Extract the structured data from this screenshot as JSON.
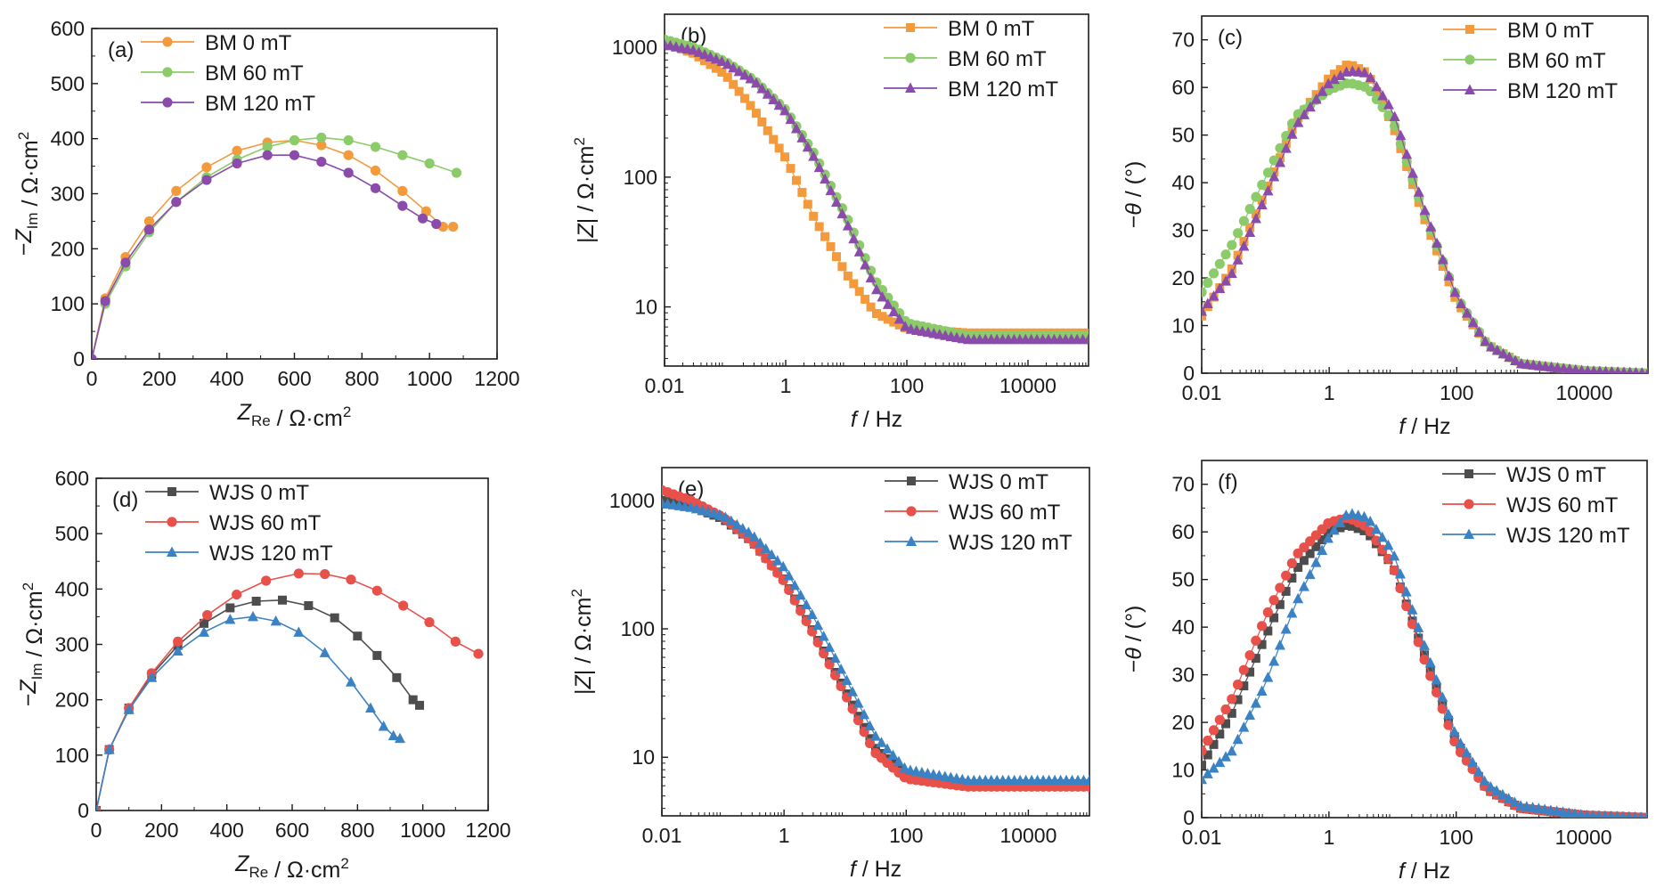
{
  "chart_data": [
    {
      "id": "a",
      "type": "line",
      "panel_label": "(a)",
      "xlabel": "Z_Re / Ω·cm²",
      "ylabel": "−Z_Im / Ω·cm²",
      "xlim": [
        0,
        1200
      ],
      "ylim": [
        0,
        600
      ],
      "xticks": [
        0,
        200,
        400,
        600,
        800,
        1000,
        1200
      ],
      "yticks": [
        0,
        100,
        200,
        300,
        400,
        500,
        600
      ],
      "xscale": "linear",
      "yscale": "linear",
      "grid": false,
      "legend_position": "top-left",
      "series": [
        {
          "name": "BM 0 mT",
          "color": "#F39A3C",
          "marker": "circle",
          "x": [
            0,
            40,
            100,
            170,
            250,
            340,
            430,
            520,
            600,
            680,
            760,
            840,
            920,
            990,
            1040,
            1070
          ],
          "y": [
            0,
            110,
            185,
            250,
            305,
            348,
            378,
            393,
            397,
            388,
            370,
            342,
            305,
            268,
            240,
            240
          ]
        },
        {
          "name": "BM 60 mT",
          "color": "#8CCB6A",
          "marker": "circle",
          "x": [
            0,
            40,
            100,
            170,
            250,
            340,
            430,
            520,
            600,
            680,
            760,
            840,
            920,
            1000,
            1080
          ],
          "y": [
            0,
            100,
            168,
            230,
            285,
            330,
            362,
            385,
            397,
            402,
            397,
            385,
            370,
            355,
            338
          ]
        },
        {
          "name": "BM 120 mT",
          "color": "#8A4BAA",
          "marker": "circle",
          "x": [
            0,
            40,
            100,
            170,
            250,
            340,
            430,
            520,
            600,
            680,
            760,
            840,
            920,
            980,
            1020
          ],
          "y": [
            0,
            105,
            175,
            235,
            285,
            325,
            355,
            370,
            370,
            358,
            338,
            310,
            278,
            255,
            245
          ]
        }
      ]
    },
    {
      "id": "b",
      "type": "line",
      "panel_label": "(b)",
      "xlabel": "f / Hz",
      "ylabel": "|Z| / Ω·cm²",
      "xlim": [
        0.01,
        100000
      ],
      "ylim": [
        3.5,
        1800
      ],
      "xticks": [
        0.01,
        1,
        100,
        10000
      ],
      "yticks": [
        10,
        100,
        1000
      ],
      "xscale": "log",
      "yscale": "log",
      "grid": false,
      "legend_position": "top-right",
      "series": [
        {
          "name": "BM 0 mT",
          "color": "#F39A3C",
          "marker": "square",
          "x": [
            0.01,
            0.03,
            0.1,
            0.3,
            1,
            3,
            10,
            30,
            100,
            1000,
            100000
          ],
          "y": [
            1080,
            900,
            620,
            330,
            140,
            48,
            18,
            9,
            6.8,
            6.3,
            6.3
          ]
        },
        {
          "name": "BM 60 mT",
          "color": "#8CCB6A",
          "marker": "circle",
          "x": [
            0.01,
            0.03,
            0.1,
            0.3,
            1,
            3,
            10,
            30,
            100,
            1000,
            100000
          ],
          "y": [
            1150,
            1000,
            780,
            560,
            330,
            150,
            50,
            16,
            7.5,
            6.0,
            6.0
          ]
        },
        {
          "name": "BM 120 mT",
          "color": "#8A4BAA",
          "marker": "triangle",
          "x": [
            0.01,
            0.03,
            0.1,
            0.3,
            1,
            3,
            10,
            30,
            100,
            1000,
            100000
          ],
          "y": [
            1050,
            950,
            760,
            550,
            320,
            140,
            45,
            14,
            6.8,
            5.6,
            5.6
          ]
        }
      ]
    },
    {
      "id": "c",
      "type": "line",
      "panel_label": "(c)",
      "xlabel": "f / Hz",
      "ylabel": "−θ / (°)",
      "xlim": [
        0.01,
        100000
      ],
      "ylim": [
        0,
        75
      ],
      "xticks": [
        0.01,
        1,
        100,
        10000
      ],
      "yticks": [
        0,
        10,
        20,
        30,
        40,
        50,
        60,
        70
      ],
      "xscale": "log",
      "yscale": "linear",
      "grid": false,
      "legend_position": "top-right",
      "series": [
        {
          "name": "BM 0 mT",
          "color": "#F39A3C",
          "marker": "square",
          "x": [
            0.01,
            0.03,
            0.1,
            0.3,
            1,
            2,
            4,
            10,
            30,
            100,
            300,
            1000,
            10000,
            100000
          ],
          "y": [
            12,
            22,
            38,
            53,
            62,
            65,
            63,
            52,
            33,
            15,
            6,
            2,
            0.5,
            0
          ]
        },
        {
          "name": "BM 60 mT",
          "color": "#8CCB6A",
          "marker": "circle",
          "x": [
            0.01,
            0.03,
            0.1,
            0.3,
            1,
            2,
            4,
            10,
            30,
            100,
            300,
            1000,
            10000,
            100000
          ],
          "y": [
            17,
            27,
            41,
            54,
            59.5,
            61,
            60,
            53,
            34,
            16,
            6,
            2,
            0.5,
            0
          ]
        },
        {
          "name": "BM 120 mT",
          "color": "#8A4BAA",
          "marker": "triangle",
          "x": [
            0.01,
            0.03,
            0.1,
            0.3,
            1,
            2,
            4,
            10,
            30,
            100,
            300,
            1000,
            10000,
            100000
          ],
          "y": [
            13,
            21,
            37,
            52,
            61,
            63.5,
            63,
            55,
            35,
            16,
            6,
            2,
            0.5,
            0
          ]
        }
      ]
    },
    {
      "id": "d",
      "type": "line",
      "panel_label": "(d)",
      "xlabel": "Z_Re / Ω·cm²",
      "ylabel": "−Z_Im / Ω·cm²",
      "xlim": [
        0,
        1200
      ],
      "ylim": [
        0,
        600
      ],
      "xticks": [
        0,
        200,
        400,
        600,
        800,
        1000,
        1200
      ],
      "yticks": [
        0,
        100,
        200,
        300,
        400,
        500,
        600
      ],
      "xscale": "linear",
      "yscale": "linear",
      "grid": false,
      "legend_position": "top-left",
      "series": [
        {
          "name": "WJS 0 mT",
          "color": "#4D4D4D",
          "marker": "square",
          "x": [
            0,
            40,
            100,
            170,
            250,
            330,
            410,
            490,
            570,
            650,
            730,
            800,
            860,
            920,
            970,
            990
          ],
          "y": [
            0,
            110,
            185,
            245,
            298,
            338,
            366,
            378,
            380,
            370,
            348,
            315,
            280,
            240,
            200,
            190
          ]
        },
        {
          "name": "WJS 60 mT",
          "color": "#E8504A",
          "marker": "circle",
          "x": [
            0,
            40,
            100,
            170,
            250,
            340,
            430,
            520,
            620,
            700,
            780,
            860,
            940,
            1020,
            1100,
            1170
          ],
          "y": [
            0,
            110,
            185,
            248,
            305,
            353,
            390,
            415,
            428,
            427,
            417,
            397,
            370,
            340,
            305,
            283
          ]
        },
        {
          "name": "WJS 120 mT",
          "color": "#3B82C4",
          "marker": "triangle",
          "x": [
            0,
            40,
            100,
            170,
            250,
            330,
            410,
            480,
            550,
            620,
            700,
            780,
            840,
            880,
            910,
            930
          ],
          "y": [
            0,
            110,
            182,
            240,
            288,
            322,
            345,
            350,
            342,
            322,
            285,
            232,
            185,
            152,
            135,
            130
          ]
        }
      ]
    },
    {
      "id": "e",
      "type": "line",
      "panel_label": "(e)",
      "xlabel": "f / Hz",
      "ylabel": "|Z| / Ω·cm²",
      "xlim": [
        0.01,
        100000
      ],
      "ylim": [
        3.5,
        1800
      ],
      "xticks": [
        0.01,
        1,
        100,
        10000
      ],
      "yticks": [
        10,
        100,
        1000
      ],
      "xscale": "log",
      "yscale": "log",
      "grid": false,
      "legend_position": "top-right",
      "series": [
        {
          "name": "WJS 0 mT",
          "color": "#4D4D4D",
          "marker": "square",
          "x": [
            0.01,
            0.03,
            0.1,
            0.3,
            1,
            3,
            10,
            30,
            100,
            1000,
            100000
          ],
          "y": [
            1000,
            900,
            720,
            480,
            240,
            95,
            33,
            12,
            7.2,
            6.2,
            6.2
          ]
        },
        {
          "name": "WJS 60 mT",
          "color": "#E8504A",
          "marker": "circle",
          "x": [
            0.01,
            0.03,
            0.1,
            0.3,
            1,
            3,
            10,
            30,
            100,
            1000,
            100000
          ],
          "y": [
            1200,
            1000,
            740,
            480,
            235,
            92,
            31,
            11,
            6.8,
            5.9,
            5.9
          ]
        },
        {
          "name": "WJS 120 mT",
          "color": "#3B82C4",
          "marker": "triangle",
          "x": [
            0.01,
            0.03,
            0.1,
            0.3,
            1,
            3,
            10,
            30,
            100,
            1000,
            100000
          ],
          "y": [
            950,
            880,
            760,
            540,
            300,
            125,
            42,
            15,
            8.0,
            6.6,
            6.6
          ]
        }
      ]
    },
    {
      "id": "f",
      "type": "line",
      "panel_label": "(f)",
      "xlabel": "f / Hz",
      "ylabel": "−θ / (°)",
      "xlim": [
        0.01,
        100000
      ],
      "ylim": [
        0,
        75
      ],
      "xticks": [
        0.01,
        1,
        100,
        10000
      ],
      "yticks": [
        0,
        10,
        20,
        30,
        40,
        50,
        60,
        70
      ],
      "xscale": "log",
      "yscale": "linear",
      "grid": false,
      "legend_position": "top-right",
      "series": [
        {
          "name": "WJS 0 mT",
          "color": "#4D4D4D",
          "marker": "square",
          "x": [
            0.01,
            0.03,
            0.1,
            0.3,
            1,
            2,
            4,
            10,
            30,
            100,
            300,
            1000,
            10000,
            100000
          ],
          "y": [
            11,
            22,
            38,
            52,
            60,
            61.5,
            60,
            53,
            35,
            16,
            6,
            2,
            0.5,
            0
          ]
        },
        {
          "name": "WJS 60 mT",
          "color": "#E8504A",
          "marker": "circle",
          "x": [
            0.01,
            0.03,
            0.1,
            0.3,
            1,
            2,
            4,
            10,
            30,
            100,
            300,
            1000,
            10000,
            100000
          ],
          "y": [
            14,
            25,
            42,
            55,
            62,
            63,
            61,
            53,
            34,
            15,
            6,
            2,
            0.5,
            0
          ]
        },
        {
          "name": "WJS 120 mT",
          "color": "#3B82C4",
          "marker": "triangle",
          "x": [
            0.01,
            0.03,
            0.1,
            0.3,
            1,
            2,
            4,
            10,
            30,
            100,
            300,
            1000,
            10000,
            100000
          ],
          "y": [
            8,
            14,
            28,
            45,
            59,
            64,
            63,
            56,
            37,
            17,
            7,
            2.5,
            0.5,
            0
          ]
        }
      ]
    }
  ]
}
